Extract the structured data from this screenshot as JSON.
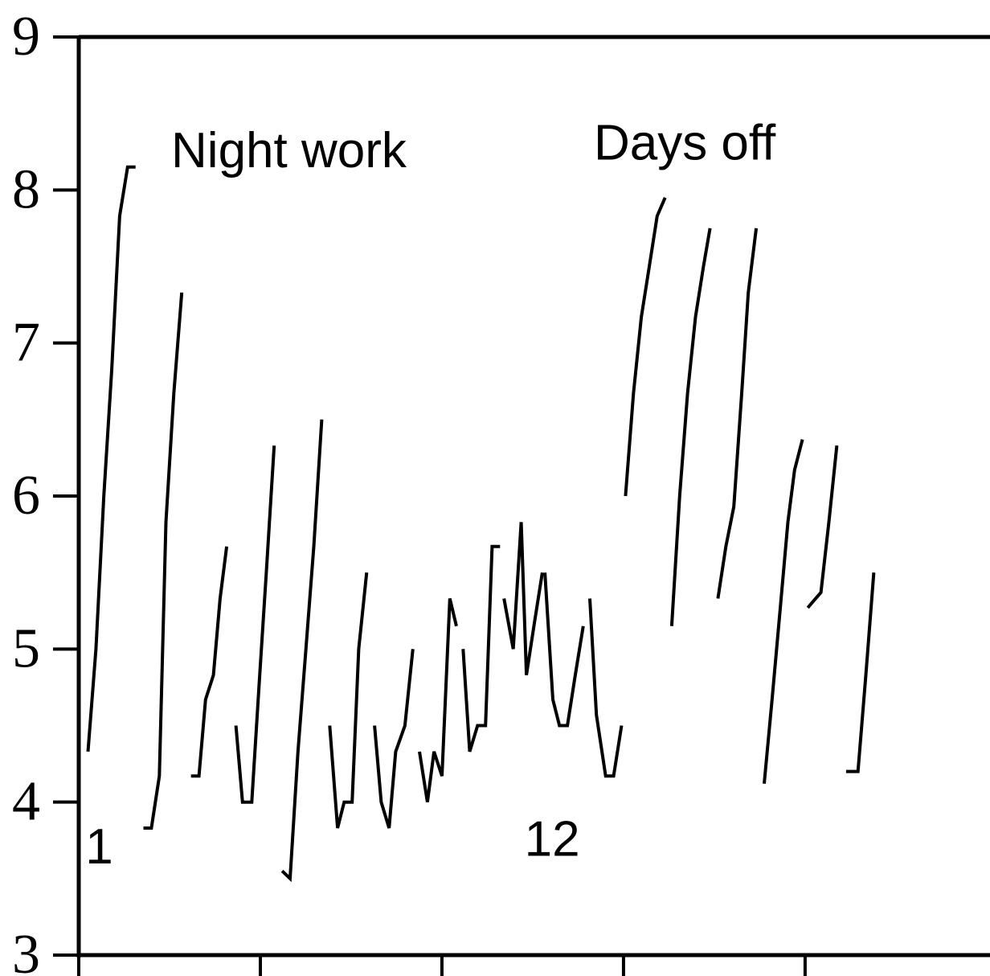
{
  "chart_data": {
    "type": "line",
    "title": "",
    "xlabel": "",
    "ylabel": "",
    "ylim": [
      3,
      9
    ],
    "yticks": [
      "9",
      "8",
      "7",
      "6",
      "5",
      "4",
      "3"
    ],
    "xticks_count": 5,
    "grid": false,
    "annotations": [
      {
        "text": "Night work",
        "x": 1.4,
        "y": 8.15
      },
      {
        "text": "Days off",
        "x": 7.8,
        "y": 8.2
      },
      {
        "text": "1",
        "x": 0.1,
        "y": 3.6
      },
      {
        "text": "12",
        "x": 6.75,
        "y": 3.65
      }
    ],
    "series": [
      {
        "points": [
          [
            0.14,
            4.33
          ],
          [
            0.26,
            5.0
          ],
          [
            0.38,
            6.0
          ],
          [
            0.5,
            6.83
          ],
          [
            0.62,
            7.83
          ],
          [
            0.74,
            8.15
          ],
          [
            0.86,
            8.15
          ]
        ]
      },
      {
        "points": [
          [
            0.98,
            3.83
          ],
          [
            1.1,
            3.83
          ],
          [
            1.22,
            4.17
          ],
          [
            1.32,
            5.83
          ],
          [
            1.44,
            6.67
          ],
          [
            1.56,
            7.33
          ]
        ]
      },
      {
        "points": [
          [
            1.7,
            4.17
          ],
          [
            1.82,
            4.17
          ],
          [
            1.92,
            4.67
          ],
          [
            2.04,
            4.83
          ],
          [
            2.14,
            5.33
          ],
          [
            2.24,
            5.67
          ]
        ]
      },
      {
        "points": [
          [
            2.38,
            4.5
          ],
          [
            2.48,
            4.0
          ],
          [
            2.62,
            4.0
          ],
          [
            2.74,
            4.83
          ],
          [
            2.84,
            5.5
          ],
          [
            2.96,
            6.33
          ]
        ]
      },
      {
        "points": [
          [
            3.08,
            3.55
          ],
          [
            3.2,
            3.5
          ],
          [
            3.32,
            4.33
          ],
          [
            3.44,
            5.0
          ],
          [
            3.56,
            5.67
          ],
          [
            3.68,
            6.5
          ]
        ]
      },
      {
        "points": [
          [
            3.8,
            4.5
          ],
          [
            3.92,
            3.83
          ],
          [
            4.02,
            4.0
          ],
          [
            4.14,
            4.0
          ],
          [
            4.24,
            5.0
          ],
          [
            4.36,
            5.5
          ]
        ]
      },
      {
        "points": [
          [
            4.48,
            4.5
          ],
          [
            4.58,
            4.0
          ],
          [
            4.7,
            3.83
          ],
          [
            4.8,
            4.33
          ],
          [
            4.94,
            4.5
          ],
          [
            5.06,
            5.0
          ]
        ]
      },
      {
        "points": [
          [
            5.16,
            4.33
          ],
          [
            5.28,
            4.0
          ],
          [
            5.38,
            4.33
          ],
          [
            5.5,
            4.17
          ],
          [
            5.62,
            5.33
          ],
          [
            5.72,
            5.15
          ]
        ]
      },
      {
        "points": [
          [
            5.82,
            5.0
          ],
          [
            5.92,
            4.33
          ],
          [
            6.04,
            4.5
          ],
          [
            6.16,
            4.5
          ],
          [
            6.26,
            5.67
          ],
          [
            6.38,
            5.67
          ]
        ]
      },
      {
        "points": [
          [
            6.44,
            5.33
          ],
          [
            6.58,
            5.0
          ],
          [
            6.7,
            5.83
          ],
          [
            6.78,
            4.83
          ],
          [
            6.9,
            5.17
          ],
          [
            7.02,
            5.5
          ]
        ]
      },
      {
        "points": [
          [
            7.06,
            5.5
          ],
          [
            7.18,
            4.67
          ],
          [
            7.28,
            4.5
          ],
          [
            7.4,
            4.5
          ],
          [
            7.52,
            4.83
          ],
          [
            7.64,
            5.15
          ]
        ]
      },
      {
        "points": [
          [
            7.74,
            5.33
          ],
          [
            7.84,
            4.57
          ],
          [
            7.98,
            4.17
          ],
          [
            8.1,
            4.17
          ],
          [
            8.22,
            4.5
          ]
        ]
      },
      {
        "points": [
          [
            8.28,
            6.0
          ],
          [
            8.4,
            6.67
          ],
          [
            8.52,
            7.17
          ],
          [
            8.64,
            7.5
          ],
          [
            8.76,
            7.83
          ],
          [
            8.88,
            7.95
          ]
        ]
      },
      {
        "points": [
          [
            8.98,
            5.15
          ],
          [
            9.1,
            6.0
          ],
          [
            9.22,
            6.67
          ],
          [
            9.34,
            7.17
          ],
          [
            9.46,
            7.5
          ],
          [
            9.56,
            7.75
          ]
        ]
      },
      {
        "points": [
          [
            9.68,
            5.33
          ],
          [
            9.8,
            5.67
          ],
          [
            9.92,
            5.93
          ],
          [
            10.04,
            6.67
          ],
          [
            10.14,
            7.33
          ],
          [
            10.26,
            7.75
          ]
        ]
      },
      {
        "points": [
          [
            10.38,
            4.12
          ],
          [
            10.5,
            4.67
          ],
          [
            10.62,
            5.25
          ],
          [
            10.74,
            5.83
          ],
          [
            10.84,
            6.17
          ],
          [
            10.96,
            6.37
          ]
        ]
      },
      {
        "points": [
          [
            11.04,
            5.27
          ],
          [
            11.24,
            5.37
          ],
          [
            11.36,
            5.83
          ],
          [
            11.48,
            6.33
          ]
        ]
      },
      {
        "points": [
          [
            11.62,
            4.2
          ],
          [
            11.8,
            4.2
          ],
          [
            11.92,
            4.83
          ],
          [
            12.04,
            5.5
          ]
        ]
      }
    ]
  }
}
